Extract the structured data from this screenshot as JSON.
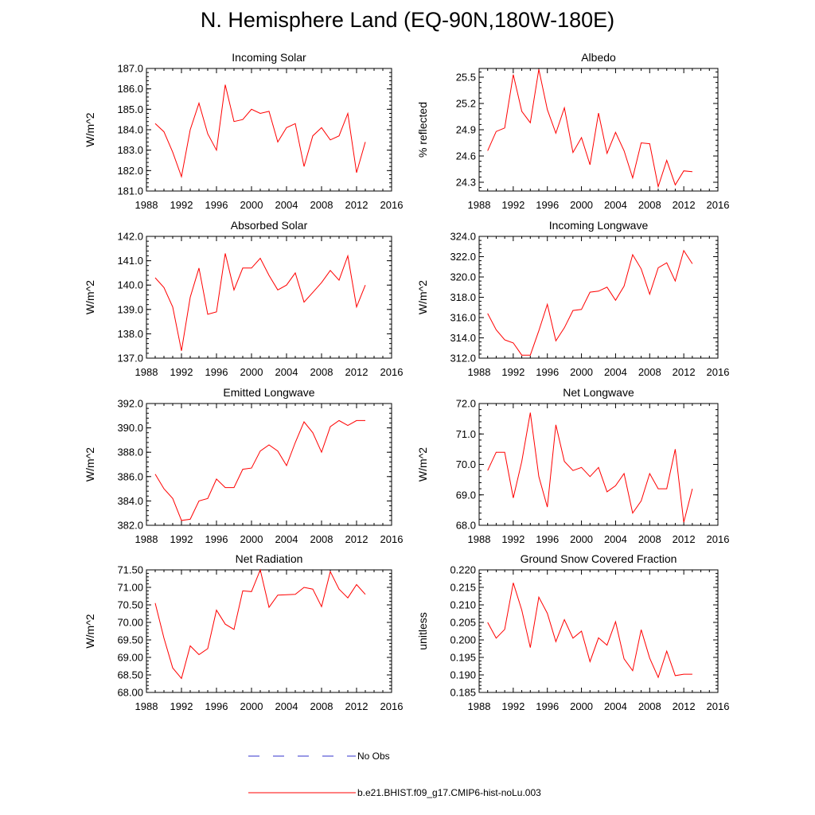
{
  "title": "N. Hemisphere Land (EQ-90N,180W-180E)",
  "colors": {
    "model": "#ff0000",
    "obs": "#3333cc",
    "axis": "#000000"
  },
  "legend": [
    {
      "label": "No Obs",
      "style": "dashed",
      "color": "#3333cc"
    },
    {
      "label": "b.e21.BHIST.f09_g17.CMIP6-hist-noLu.003",
      "style": "solid",
      "color": "#ff0000"
    }
  ],
  "chart_data": [
    {
      "type": "line",
      "title": "Incoming Solar",
      "xlabel": "",
      "ylabel": "W/m^2",
      "xlim": [
        1988,
        2016
      ],
      "xticks": [
        1988,
        1992,
        1996,
        2000,
        2004,
        2008,
        2012,
        2016
      ],
      "ylim": [
        181,
        187
      ],
      "yticks": [
        "181.0",
        "182.0",
        "183.0",
        "184.0",
        "185.0",
        "186.0",
        "187.0"
      ],
      "grid": false,
      "x": [
        1989,
        1990,
        1991,
        1992,
        1993,
        1994,
        1995,
        1996,
        1997,
        1998,
        1999,
        2000,
        2001,
        2002,
        2003,
        2004,
        2005,
        2006,
        2007,
        2008,
        2009,
        2010,
        2011,
        2012,
        2013
      ],
      "series": [
        {
          "values": [
            184.3,
            183.9,
            182.9,
            181.7,
            184.0,
            185.3,
            183.8,
            183.0,
            186.2,
            184.4,
            184.5,
            185.0,
            184.8,
            184.9,
            183.4,
            184.1,
            184.3,
            182.2,
            183.7,
            184.1,
            183.5,
            183.7,
            184.8,
            181.9,
            183.4
          ]
        }
      ]
    },
    {
      "type": "line",
      "title": "Albedo",
      "xlabel": "",
      "ylabel": "% reflected",
      "xlim": [
        1988,
        2016
      ],
      "xticks": [
        1988,
        1992,
        1996,
        2000,
        2004,
        2008,
        2012,
        2016
      ],
      "ylim": [
        24.2,
        25.6
      ],
      "yticks": [
        "24.3",
        "24.6",
        "24.9",
        "25.2",
        "25.5"
      ],
      "grid": false,
      "x": [
        1989,
        1990,
        1991,
        1992,
        1993,
        1994,
        1995,
        1996,
        1997,
        1998,
        1999,
        2000,
        2001,
        2002,
        2003,
        2004,
        2005,
        2006,
        2007,
        2008,
        2009,
        2010,
        2011,
        2012,
        2013
      ],
      "series": [
        {
          "values": [
            24.66,
            24.88,
            24.92,
            25.53,
            25.11,
            24.98,
            25.59,
            25.13,
            24.86,
            25.15,
            24.64,
            24.81,
            24.5,
            25.09,
            24.63,
            24.87,
            24.66,
            24.35,
            24.75,
            24.74,
            24.25,
            24.55,
            24.27,
            24.43,
            24.42
          ]
        }
      ]
    },
    {
      "type": "line",
      "title": "Absorbed Solar",
      "xlabel": "",
      "ylabel": "W/m^2",
      "xlim": [
        1988,
        2016
      ],
      "xticks": [
        1988,
        1992,
        1996,
        2000,
        2004,
        2008,
        2012,
        2016
      ],
      "ylim": [
        137,
        142
      ],
      "yticks": [
        "137.0",
        "138.0",
        "139.0",
        "140.0",
        "141.0",
        "142.0"
      ],
      "grid": false,
      "x": [
        1989,
        1990,
        1991,
        1992,
        1993,
        1994,
        1995,
        1996,
        1997,
        1998,
        1999,
        2000,
        2001,
        2002,
        2003,
        2004,
        2005,
        2006,
        2007,
        2008,
        2009,
        2010,
        2011,
        2012,
        2013
      ],
      "series": [
        {
          "values": [
            140.3,
            139.9,
            139.1,
            137.3,
            139.5,
            140.7,
            138.8,
            138.9,
            141.3,
            139.8,
            140.7,
            140.7,
            141.1,
            140.4,
            139.8,
            140.0,
            140.5,
            139.3,
            139.7,
            140.1,
            140.6,
            140.2,
            141.2,
            139.1,
            140.0
          ]
        }
      ]
    },
    {
      "type": "line",
      "title": "Incoming Longwave",
      "xlabel": "",
      "ylabel": "W/m^2",
      "xlim": [
        1988,
        2016
      ],
      "xticks": [
        1988,
        1992,
        1996,
        2000,
        2004,
        2008,
        2012,
        2016
      ],
      "ylim": [
        312,
        324
      ],
      "yticks": [
        "312.0",
        "314.0",
        "316.0",
        "318.0",
        "320.0",
        "322.0",
        "324.0"
      ],
      "grid": false,
      "x": [
        1989,
        1990,
        1991,
        1992,
        1993,
        1994,
        1995,
        1996,
        1997,
        1998,
        1999,
        2000,
        2001,
        2002,
        2003,
        2004,
        2005,
        2006,
        2007,
        2008,
        2009,
        2010,
        2011,
        2012,
        2013
      ],
      "series": [
        {
          "values": [
            316.4,
            314.8,
            313.8,
            313.5,
            312.3,
            312.3,
            314.7,
            317.3,
            313.7,
            315.0,
            316.7,
            316.8,
            318.5,
            318.6,
            319.0,
            317.7,
            319.1,
            322.2,
            320.8,
            318.3,
            320.9,
            321.4,
            319.6,
            322.6,
            321.3
          ]
        }
      ]
    },
    {
      "type": "line",
      "title": "Emitted Longwave",
      "xlabel": "",
      "ylabel": "W/m^2",
      "xlim": [
        1988,
        2016
      ],
      "xticks": [
        1988,
        1992,
        1996,
        2000,
        2004,
        2008,
        2012,
        2016
      ],
      "ylim": [
        382,
        392
      ],
      "yticks": [
        "382.0",
        "384.0",
        "386.0",
        "388.0",
        "390.0",
        "392.0"
      ],
      "grid": false,
      "x": [
        1989,
        1990,
        1991,
        1992,
        1993,
        1994,
        1995,
        1996,
        1997,
        1998,
        1999,
        2000,
        2001,
        2002,
        2003,
        2004,
        2005,
        2006,
        2007,
        2008,
        2009,
        2010,
        2011,
        2012,
        2013
      ],
      "series": [
        {
          "values": [
            386.2,
            385.0,
            384.2,
            382.4,
            382.5,
            384.0,
            384.2,
            385.8,
            385.1,
            385.1,
            386.6,
            386.7,
            388.1,
            388.6,
            388.1,
            386.9,
            388.8,
            390.5,
            389.6,
            388.0,
            390.1,
            390.6,
            390.2,
            390.6,
            390.6
          ]
        }
      ]
    },
    {
      "type": "line",
      "title": "Net Longwave",
      "xlabel": "",
      "ylabel": "W/m^2",
      "xlim": [
        1988,
        2016
      ],
      "xticks": [
        1988,
        1992,
        1996,
        2000,
        2004,
        2008,
        2012,
        2016
      ],
      "ylim": [
        68,
        72
      ],
      "yticks": [
        "68.0",
        "69.0",
        "70.0",
        "71.0",
        "72.0"
      ],
      "grid": false,
      "x": [
        1989,
        1990,
        1991,
        1992,
        1993,
        1994,
        1995,
        1996,
        1997,
        1998,
        1999,
        2000,
        2001,
        2002,
        2003,
        2004,
        2005,
        2006,
        2007,
        2008,
        2009,
        2010,
        2011,
        2012,
        2013
      ],
      "series": [
        {
          "values": [
            69.8,
            70.4,
            70.4,
            68.9,
            70.1,
            71.7,
            69.6,
            68.6,
            71.3,
            70.1,
            69.8,
            69.9,
            69.6,
            69.9,
            69.1,
            69.3,
            69.7,
            68.4,
            68.8,
            69.7,
            69.2,
            69.2,
            70.5,
            68.1,
            69.2
          ]
        }
      ]
    },
    {
      "type": "line",
      "title": "Net Radiation",
      "xlabel": "",
      "ylabel": "W/m^2",
      "xlim": [
        1988,
        2016
      ],
      "xticks": [
        1988,
        1992,
        1996,
        2000,
        2004,
        2008,
        2012,
        2016
      ],
      "ylim": [
        68,
        71.5
      ],
      "yticks": [
        "68.00",
        "68.50",
        "69.00",
        "69.50",
        "70.00",
        "70.50",
        "71.00",
        "71.50"
      ],
      "grid": false,
      "x": [
        1989,
        1990,
        1991,
        1992,
        1993,
        1994,
        1995,
        1996,
        1997,
        1998,
        1999,
        2000,
        2001,
        2002,
        2003,
        2004,
        2005,
        2006,
        2007,
        2008,
        2009,
        2010,
        2011,
        2012,
        2013
      ],
      "series": [
        {
          "values": [
            70.55,
            69.55,
            68.7,
            68.4,
            69.33,
            69.08,
            69.25,
            70.35,
            69.95,
            69.8,
            70.9,
            70.88,
            71.5,
            70.43,
            70.78,
            70.79,
            70.8,
            71.0,
            70.95,
            70.45,
            71.45,
            70.95,
            70.7,
            71.08,
            70.8
          ]
        }
      ]
    },
    {
      "type": "line",
      "title": "Ground Snow Covered Fraction",
      "xlabel": "",
      "ylabel": "unitless",
      "xlim": [
        1988,
        2016
      ],
      "xticks": [
        1988,
        1992,
        1996,
        2000,
        2004,
        2008,
        2012,
        2016
      ],
      "ylim": [
        0.185,
        0.22
      ],
      "yticks": [
        "0.185",
        "0.190",
        "0.195",
        "0.200",
        "0.205",
        "0.210",
        "0.215",
        "0.220"
      ],
      "grid": false,
      "x": [
        1989,
        1990,
        1991,
        1992,
        1993,
        1994,
        1995,
        1996,
        1997,
        1998,
        1999,
        2000,
        2001,
        2002,
        2003,
        2004,
        2005,
        2006,
        2007,
        2008,
        2009,
        2010,
        2011,
        2012,
        2013
      ],
      "series": [
        {
          "values": [
            0.205,
            0.2005,
            0.203,
            0.2163,
            0.2085,
            0.1978,
            0.2122,
            0.2076,
            0.1995,
            0.2058,
            0.2005,
            0.2025,
            0.1938,
            0.2006,
            0.1985,
            0.2052,
            0.1946,
            0.1912,
            0.2029,
            0.1948,
            0.1893,
            0.1968,
            0.1898,
            0.1902,
            0.1902
          ]
        }
      ]
    }
  ]
}
